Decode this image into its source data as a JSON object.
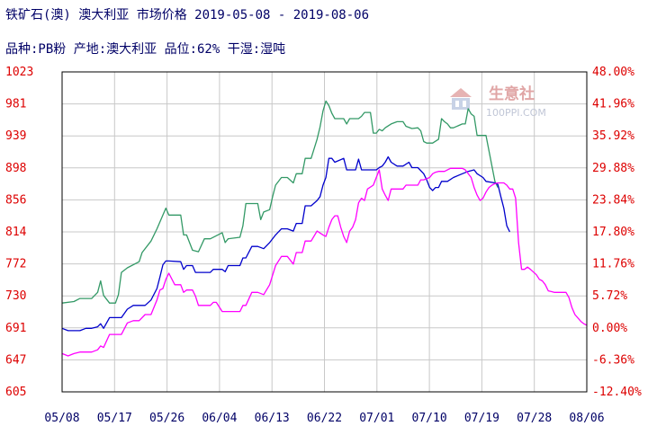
{
  "title": "铁矿石(澳) 澳大利亚 市场价格 2019-05-08 - 2019-08-06",
  "subtitle": "品种:PB粉 产地:澳大利亚 品位:62% 干湿:湿吨",
  "watermark": {
    "name": "生意社",
    "url": "100PPI.COM"
  },
  "colors": {
    "left_axis": "#dd0000",
    "right_axis": "#dd0000",
    "x_axis": "#000066",
    "grid": "#c8c8c8",
    "frame": "#000000",
    "green": "#339966",
    "blue": "#0000cc",
    "magenta": "#ff00ff"
  },
  "chart_data": {
    "type": "line",
    "grid": true,
    "legend": "none",
    "x_ticks": [
      "05/08",
      "05/17",
      "05/26",
      "06/04",
      "06/13",
      "06/22",
      "07/01",
      "07/10",
      "07/19",
      "07/28",
      "08/06"
    ],
    "y_ticks_left": [
      "1023",
      "981",
      "939",
      "898",
      "856",
      "814",
      "772",
      "730",
      "691",
      "647",
      "605"
    ],
    "y_ticks_right": [
      "48.00%",
      "41.96%",
      "35.92%",
      "29.88%",
      "23.84%",
      "17.80%",
      "11.76%",
      "5.72%",
      "0.00%",
      "-6.36%",
      "-12.40%"
    ],
    "ylim_left": [
      605,
      1023
    ],
    "ylim_right": [
      -12.4,
      48.0
    ],
    "x_start": "05/08",
    "x_end": "08/06",
    "series": [
      {
        "color": "green",
        "axis": "left",
        "points": [
          [
            0,
            721
          ],
          [
            4,
            723
          ],
          [
            6,
            727
          ],
          [
            10,
            727
          ],
          [
            12,
            735
          ],
          [
            13,
            750
          ],
          [
            14,
            731
          ],
          [
            16,
            721
          ],
          [
            18,
            721
          ],
          [
            19,
            732
          ],
          [
            20,
            761
          ],
          [
            22,
            767
          ],
          [
            26,
            775
          ],
          [
            27,
            787
          ],
          [
            30,
            802
          ],
          [
            32,
            818
          ],
          [
            34,
            836
          ],
          [
            35,
            845
          ],
          [
            36,
            836
          ],
          [
            40,
            836
          ],
          [
            41,
            810
          ],
          [
            42,
            810
          ],
          [
            44,
            790
          ],
          [
            46,
            788
          ],
          [
            48,
            805
          ],
          [
            50,
            805
          ],
          [
            54,
            813
          ],
          [
            55,
            800
          ],
          [
            56,
            805
          ],
          [
            60,
            807
          ],
          [
            61,
            822
          ],
          [
            62,
            851
          ],
          [
            66,
            851
          ],
          [
            67,
            830
          ],
          [
            68,
            840
          ],
          [
            70,
            843
          ],
          [
            71,
            860
          ],
          [
            72,
            875
          ],
          [
            74,
            885
          ],
          [
            76,
            885
          ],
          [
            78,
            878
          ],
          [
            79,
            890
          ],
          [
            81,
            890
          ],
          [
            82,
            910
          ],
          [
            84,
            910
          ],
          [
            86,
            935
          ],
          [
            87,
            951
          ],
          [
            88,
            972
          ],
          [
            89,
            985
          ],
          [
            90,
            979
          ],
          [
            91,
            969
          ],
          [
            92,
            962
          ],
          [
            95,
            962
          ],
          [
            96,
            955
          ],
          [
            97,
            962
          ],
          [
            99,
            962
          ],
          [
            100,
            962
          ],
          [
            101,
            965
          ],
          [
            102,
            970
          ],
          [
            104,
            970
          ],
          [
            105,
            943
          ],
          [
            106,
            943
          ],
          [
            107,
            948
          ],
          [
            108,
            946
          ],
          [
            109,
            950
          ],
          [
            111,
            955
          ],
          [
            113,
            958
          ],
          [
            115,
            958
          ],
          [
            116,
            952
          ],
          [
            118,
            949
          ],
          [
            120,
            950
          ],
          [
            121,
            946
          ],
          [
            122,
            932
          ],
          [
            123,
            930
          ],
          [
            125,
            930
          ],
          [
            127,
            935
          ],
          [
            128,
            962
          ],
          [
            129,
            958
          ],
          [
            130,
            955
          ],
          [
            131,
            950
          ],
          [
            132,
            950
          ],
          [
            135,
            955
          ],
          [
            136,
            955
          ],
          [
            137,
            975
          ],
          [
            138,
            968
          ],
          [
            139,
            965
          ],
          [
            140,
            940
          ],
          [
            142,
            940
          ],
          [
            143,
            940
          ],
          [
            144,
            920
          ],
          [
            145,
            900
          ],
          [
            146,
            880
          ],
          [
            147,
            872
          ]
        ]
      },
      {
        "color": "blue",
        "axis": "left",
        "points": [
          [
            0,
            688
          ],
          [
            2,
            685
          ],
          [
            4,
            685
          ],
          [
            6,
            685
          ],
          [
            8,
            688
          ],
          [
            10,
            688
          ],
          [
            12,
            690
          ],
          [
            13,
            694
          ],
          [
            14,
            688
          ],
          [
            16,
            702
          ],
          [
            18,
            702
          ],
          [
            20,
            702
          ],
          [
            22,
            713
          ],
          [
            24,
            718
          ],
          [
            26,
            718
          ],
          [
            28,
            718
          ],
          [
            30,
            725
          ],
          [
            32,
            740
          ],
          [
            33,
            755
          ],
          [
            34,
            771
          ],
          [
            35,
            776
          ],
          [
            36,
            776
          ],
          [
            40,
            775
          ],
          [
            41,
            765
          ],
          [
            42,
            770
          ],
          [
            44,
            770
          ],
          [
            45,
            761
          ],
          [
            48,
            761
          ],
          [
            50,
            761
          ],
          [
            51,
            765
          ],
          [
            52,
            765
          ],
          [
            54,
            765
          ],
          [
            55,
            762
          ],
          [
            56,
            770
          ],
          [
            58,
            770
          ],
          [
            60,
            770
          ],
          [
            61,
            780
          ],
          [
            62,
            780
          ],
          [
            64,
            795
          ],
          [
            66,
            795
          ],
          [
            68,
            792
          ],
          [
            70,
            800
          ],
          [
            72,
            810
          ],
          [
            74,
            818
          ],
          [
            76,
            818
          ],
          [
            78,
            815
          ],
          [
            79,
            825
          ],
          [
            81,
            825
          ],
          [
            82,
            848
          ],
          [
            84,
            848
          ],
          [
            86,
            855
          ],
          [
            87,
            860
          ],
          [
            88,
            875
          ],
          [
            89,
            885
          ],
          [
            90,
            910
          ],
          [
            91,
            910
          ],
          [
            92,
            905
          ],
          [
            95,
            910
          ],
          [
            96,
            895
          ],
          [
            97,
            895
          ],
          [
            99,
            895
          ],
          [
            100,
            909
          ],
          [
            101,
            895
          ],
          [
            102,
            895
          ],
          [
            104,
            895
          ],
          [
            105,
            895
          ],
          [
            106,
            895
          ],
          [
            107,
            898
          ],
          [
            108,
            900
          ],
          [
            109,
            905
          ],
          [
            110,
            912
          ],
          [
            111,
            905
          ],
          [
            113,
            900
          ],
          [
            115,
            900
          ],
          [
            117,
            905
          ],
          [
            118,
            898
          ],
          [
            120,
            898
          ],
          [
            122,
            890
          ],
          [
            123,
            882
          ],
          [
            124,
            872
          ],
          [
            125,
            868
          ],
          [
            126,
            872
          ],
          [
            127,
            872
          ],
          [
            128,
            880
          ],
          [
            130,
            880
          ],
          [
            132,
            885
          ],
          [
            135,
            890
          ],
          [
            137,
            893
          ],
          [
            139,
            895
          ],
          [
            140,
            890
          ],
          [
            142,
            885
          ],
          [
            143,
            880
          ],
          [
            146,
            878
          ],
          [
            147,
            876
          ],
          [
            148,
            860
          ],
          [
            149,
            845
          ],
          [
            150,
            822
          ],
          [
            151,
            814
          ]
        ]
      },
      {
        "color": "magenta",
        "axis": "left",
        "points": [
          [
            0,
            655
          ],
          [
            2,
            652
          ],
          [
            4,
            655
          ],
          [
            6,
            657
          ],
          [
            8,
            657
          ],
          [
            10,
            657
          ],
          [
            12,
            660
          ],
          [
            13,
            665
          ],
          [
            14,
            663
          ],
          [
            16,
            680
          ],
          [
            18,
            680
          ],
          [
            20,
            680
          ],
          [
            22,
            695
          ],
          [
            24,
            698
          ],
          [
            26,
            698
          ],
          [
            28,
            706
          ],
          [
            30,
            706
          ],
          [
            32,
            725
          ],
          [
            33,
            738
          ],
          [
            34,
            740
          ],
          [
            35,
            752
          ],
          [
            36,
            760
          ],
          [
            38,
            745
          ],
          [
            40,
            745
          ],
          [
            41,
            735
          ],
          [
            42,
            738
          ],
          [
            44,
            738
          ],
          [
            45,
            730
          ],
          [
            46,
            718
          ],
          [
            48,
            718
          ],
          [
            50,
            718
          ],
          [
            51,
            722
          ],
          [
            52,
            722
          ],
          [
            54,
            710
          ],
          [
            56,
            710
          ],
          [
            58,
            710
          ],
          [
            60,
            710
          ],
          [
            61,
            718
          ],
          [
            62,
            718
          ],
          [
            64,
            735
          ],
          [
            66,
            735
          ],
          [
            68,
            732
          ],
          [
            70,
            745
          ],
          [
            72,
            770
          ],
          [
            74,
            782
          ],
          [
            76,
            782
          ],
          [
            78,
            772
          ],
          [
            79,
            787
          ],
          [
            81,
            787
          ],
          [
            82,
            802
          ],
          [
            84,
            802
          ],
          [
            86,
            815
          ],
          [
            88,
            810
          ],
          [
            89,
            808
          ],
          [
            90,
            820
          ],
          [
            91,
            830
          ],
          [
            92,
            835
          ],
          [
            93,
            835
          ],
          [
            94,
            820
          ],
          [
            95,
            808
          ],
          [
            96,
            800
          ],
          [
            97,
            815
          ],
          [
            98,
            820
          ],
          [
            99,
            830
          ],
          [
            100,
            852
          ],
          [
            101,
            858
          ],
          [
            102,
            855
          ],
          [
            103,
            870
          ],
          [
            105,
            875
          ],
          [
            107,
            895
          ],
          [
            108,
            870
          ],
          [
            109,
            862
          ],
          [
            110,
            855
          ],
          [
            111,
            870
          ],
          [
            112,
            870
          ],
          [
            114,
            870
          ],
          [
            115,
            870
          ],
          [
            116,
            875
          ],
          [
            118,
            875
          ],
          [
            120,
            875
          ],
          [
            121,
            882
          ],
          [
            122,
            882
          ],
          [
            124,
            885
          ],
          [
            125,
            890
          ],
          [
            126,
            892
          ],
          [
            127,
            893
          ],
          [
            129,
            893
          ],
          [
            131,
            897
          ],
          [
            133,
            897
          ],
          [
            135,
            897
          ],
          [
            136,
            895
          ],
          [
            138,
            885
          ],
          [
            139,
            872
          ],
          [
            140,
            862
          ],
          [
            141,
            855
          ],
          [
            142,
            858
          ],
          [
            143,
            866
          ],
          [
            144,
            872
          ],
          [
            145,
            875
          ],
          [
            146,
            877
          ],
          [
            147,
            878
          ],
          [
            149,
            878
          ],
          [
            150,
            875
          ],
          [
            151,
            870
          ],
          [
            152,
            870
          ],
          [
            153,
            858
          ],
          [
            154,
            800
          ],
          [
            155,
            765
          ],
          [
            156,
            765
          ],
          [
            157,
            768
          ],
          [
            158,
            765
          ],
          [
            160,
            758
          ],
          [
            161,
            752
          ],
          [
            162,
            750
          ],
          [
            163,
            745
          ],
          [
            164,
            737
          ],
          [
            165,
            736
          ],
          [
            166,
            735
          ],
          [
            168,
            735
          ],
          [
            170,
            735
          ],
          [
            171,
            728
          ],
          [
            172,
            715
          ],
          [
            173,
            706
          ],
          [
            175,
            697
          ],
          [
            176,
            694
          ],
          [
            177,
            692
          ]
        ]
      }
    ]
  }
}
